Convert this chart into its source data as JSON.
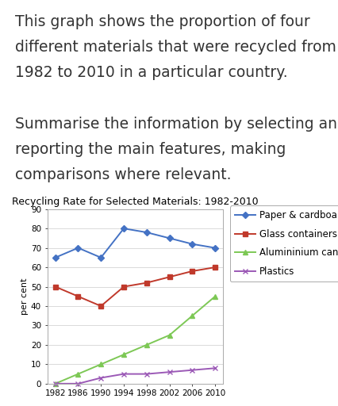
{
  "title": "Recycling Rate for Selected Materials: 1982-2010",
  "ylabel": "per cent",
  "years": [
    1982,
    1986,
    1990,
    1994,
    1998,
    2002,
    2006,
    2010
  ],
  "series": [
    {
      "label": "Paper & cardboard",
      "values": [
        65,
        70,
        65,
        80,
        78,
        75,
        72,
        70
      ],
      "color": "#4472C4",
      "marker": "D",
      "markersize": 4,
      "linewidth": 1.4
    },
    {
      "label": "Glass containers",
      "values": [
        50,
        45,
        40,
        50,
        52,
        55,
        58,
        60
      ],
      "color": "#C0392B",
      "marker": "s",
      "markersize": 4,
      "linewidth": 1.4
    },
    {
      "label": "Alumininium cans",
      "values": [
        0,
        5,
        10,
        15,
        20,
        25,
        35,
        45
      ],
      "color": "#7DC855",
      "marker": "^",
      "markersize": 4,
      "linewidth": 1.4
    },
    {
      "label": "Plastics",
      "values": [
        0,
        0,
        3,
        5,
        5,
        6,
        7,
        8
      ],
      "color": "#9B59B6",
      "marker": "x",
      "markersize": 4,
      "linewidth": 1.4
    }
  ],
  "ylim": [
    0,
    90
  ],
  "yticks": [
    0,
    10,
    20,
    30,
    40,
    50,
    60,
    70,
    80,
    90
  ],
  "xticks": [
    1982,
    1986,
    1990,
    1994,
    1998,
    2002,
    2006,
    2010
  ],
  "background_color": "#ffffff",
  "text_line1": "This graph shows the proportion of four",
  "text_line2": "different materials that were recycled from",
  "text_line3": "1982 to 2010 in a particular country.",
  "text_line4": "",
  "text_line5": "Summarise the information by selecting and",
  "text_line6": "reporting the main features, making",
  "text_line7": "comparisons where relevant.",
  "text_fontsize": 13.5,
  "title_fontsize": 9.0,
  "axis_fontsize": 7.5,
  "ylabel_fontsize": 8.0,
  "legend_fontsize": 8.5
}
